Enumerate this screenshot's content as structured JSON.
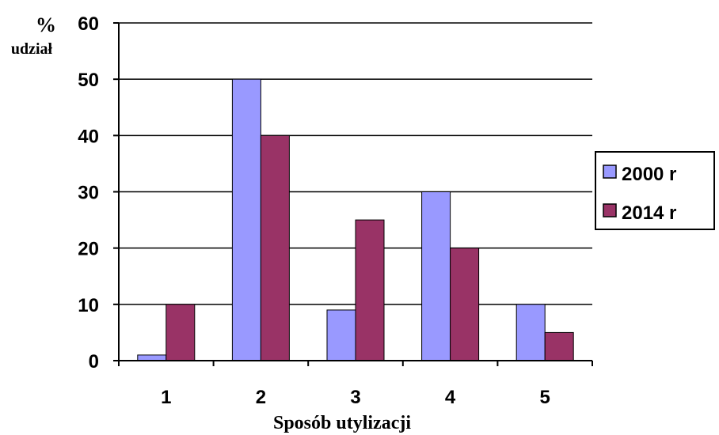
{
  "chart_data": {
    "type": "bar",
    "categories": [
      "1",
      "2",
      "3",
      "4",
      "5"
    ],
    "series": [
      {
        "name": "2000 r",
        "values": [
          1,
          50,
          9,
          30,
          10
        ],
        "color": "#9999ff"
      },
      {
        "name": "2014 r",
        "values": [
          10,
          40,
          25,
          20,
          5
        ],
        "color": "#993366"
      }
    ],
    "xlabel": "Sposób utylizacji",
    "ylabel_line1": "%",
    "ylabel_line2": "udział",
    "ylim": [
      0,
      60
    ],
    "yticks": [
      0,
      10,
      20,
      30,
      40,
      50,
      60
    ],
    "grid": true,
    "legend": "right"
  }
}
